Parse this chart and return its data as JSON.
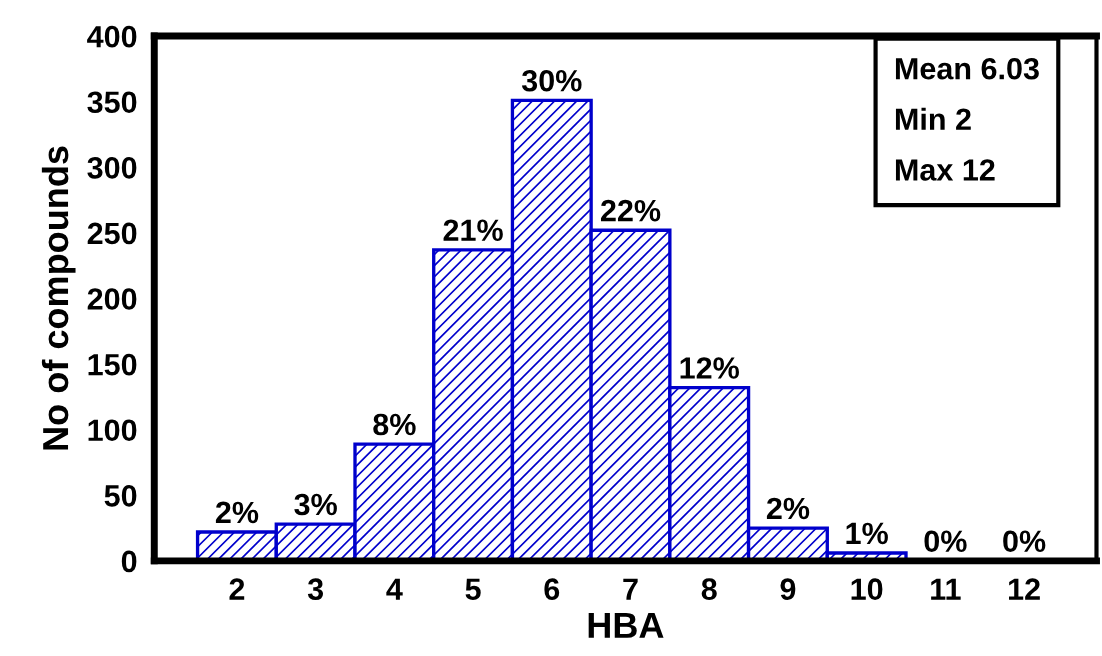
{
  "chart_data": {
    "type": "bar",
    "xlabel": "HBA",
    "ylabel": "No of compounds",
    "categories": [
      "2",
      "3",
      "4",
      "5",
      "6",
      "7",
      "8",
      "9",
      "10",
      "11",
      "12"
    ],
    "values": [
      22,
      28,
      89,
      237,
      351,
      252,
      132,
      25,
      6,
      0,
      0
    ],
    "color": "#0000cc",
    "ylim": [
      0,
      400
    ],
    "yticks": [
      0,
      50,
      100,
      150,
      200,
      250,
      300,
      350,
      400
    ],
    "grid": false,
    "annotations": [
      {
        "text": "2%",
        "x": "2",
        "y": 22
      },
      {
        "text": "3%",
        "x": "3",
        "y": 28
      },
      {
        "text": "8%",
        "x": "4",
        "y": 89
      },
      {
        "text": "21%",
        "x": "5",
        "y": 237
      },
      {
        "text": "30%",
        "x": "6",
        "y": 351
      },
      {
        "text": "22%",
        "x": "7",
        "y": 252
      },
      {
        "text": "12%",
        "x": "8",
        "y": 132
      },
      {
        "text": "2%",
        "x": "9",
        "y": 25
      },
      {
        "text": "1%",
        "x": "10",
        "y": 6
      },
      {
        "text": "0%",
        "x": "11",
        "y": 0
      },
      {
        "text": "0%",
        "x": "12",
        "y": 0
      },
      "Mean 6.03",
      "Min 2",
      "Max 12"
    ]
  }
}
